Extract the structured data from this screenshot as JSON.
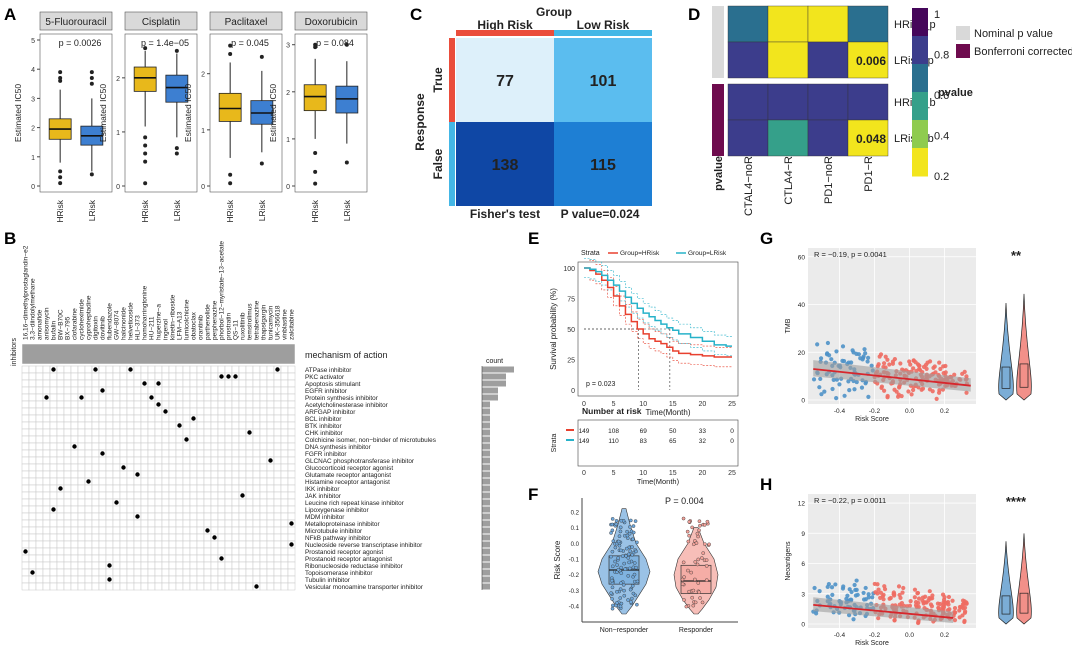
{
  "panel_labels": [
    "A",
    "B",
    "C",
    "D",
    "E",
    "F",
    "G",
    "H"
  ],
  "chart_data": [
    {
      "id": "A",
      "type": "box",
      "ylabel": "Estimated IC50",
      "categories": [
        "HRisk",
        "LRisk"
      ],
      "colors": {
        "high": "#E8B81B",
        "low": "#3D7FD1"
      },
      "subplots": [
        {
          "title": "5-Fluorouracil",
          "p": "p = 0.0026",
          "ylim": [
            0,
            5
          ],
          "ticks": [
            0,
            1,
            2,
            3,
            4,
            5
          ],
          "boxes": [
            {
              "min": 0.8,
              "q1": 1.6,
              "med": 1.95,
              "q3": 2.3,
              "max": 3.3,
              "out": [
                3.6,
                3.9,
                3.7,
                0.1,
                0.3,
                0.5
              ]
            },
            {
              "min": 0.5,
              "q1": 1.4,
              "med": 1.72,
              "q3": 2.05,
              "max": 3.0,
              "out": [
                3.5,
                3.9,
                3.7,
                0.4
              ]
            }
          ]
        },
        {
          "title": "Cisplatin",
          "p": "p = 1.4e−05",
          "ylim": [
            0,
            2.7
          ],
          "ticks": [
            0,
            1,
            2
          ],
          "boxes": [
            {
              "min": 1.1,
              "q1": 1.75,
              "med": 2.0,
              "q3": 2.2,
              "max": 2.5,
              "out": [
                0.9,
                0.75,
                0.6,
                0.45,
                0.05,
                2.55
              ]
            },
            {
              "min": 0.9,
              "q1": 1.55,
              "med": 1.82,
              "q3": 2.05,
              "max": 2.45,
              "out": [
                0.7,
                0.6,
                2.5
              ]
            }
          ]
        },
        {
          "title": "Paclitaxel",
          "p": "p = 0.045",
          "ylim": [
            0,
            2.6
          ],
          "ticks": [
            0,
            1,
            2
          ],
          "boxes": [
            {
              "min": 0.5,
              "q1": 1.15,
              "med": 1.38,
              "q3": 1.65,
              "max": 2.2,
              "out": [
                2.5,
                2.35,
                0.2,
                0.05
              ]
            },
            {
              "min": 0.6,
              "q1": 1.1,
              "med": 1.3,
              "q3": 1.52,
              "max": 2.05,
              "out": [
                2.3,
                0.4
              ]
            }
          ]
        },
        {
          "title": "Doxorubicin",
          "p": "p = 0.084",
          "ylim": [
            0,
            3.1
          ],
          "ticks": [
            0,
            1,
            2,
            3
          ],
          "boxes": [
            {
              "min": 1.0,
              "q1": 1.6,
              "med": 1.9,
              "q3": 2.15,
              "max": 2.7,
              "out": [
                2.95,
                3.0,
                0.7,
                0.3,
                0.05
              ]
            },
            {
              "min": 0.9,
              "q1": 1.55,
              "med": 1.85,
              "q3": 2.12,
              "max": 2.65,
              "out": [
                3.0,
                0.5
              ]
            }
          ]
        }
      ]
    },
    {
      "id": "B",
      "type": "dot_matrix",
      "row_axis_title": "inhibitors",
      "legend_mechanism": "mechanism of action",
      "count_title": "count",
      "drugs": [
        "16,16−dimethylprostaglandin−e2",
        "3,3−diindolylmethane",
        "amonafide",
        "anisomycin",
        "bufalin",
        "BW−B70C",
        "BX−795",
        "clofarabine",
        "cycloheximide",
        "cyproheptadine",
        "digitoxin",
        "dovitinib",
        "flubendazole",
        "GW−8074",
        "halcinonide",
        "helveticoside",
        "HLI−373",
        "homoharringtonine",
        "HU−211",
        "huperzine−a",
        "ingenol",
        "kinetin−riboside",
        "LFM−A13",
        "lumicolchicine",
        "obatoclax",
        "orantinib",
        "parthenolide",
        "perphenazine",
        "phorbol−12−myristate−13−acetate",
        "prostratin",
        "QS−11",
        "ruxolitinib",
        "temsirolimus",
        "tetrabenazine",
        "thapsigargin",
        "tunicamycin",
        "UK−356618",
        "vinblastine",
        "zalcitabine"
      ],
      "mechanisms": [
        "ATPase inhibitor",
        "PKC activator",
        "Apoptosis stimulant",
        "EGFR inhibitor",
        "Protein synthesis inhibitor",
        "Acetylcholinesterase inhibitor",
        "ARFGAP inhibitor",
        "BCL inhibitor",
        "BTK inhibitor",
        "CHK inhibitor",
        "Colchicine isomer, non−binder of microtubules",
        "DNA synthesis inhibitor",
        "FGFR inhibitor",
        "GLCNAC phosphotransferase inhibitor",
        "Glucocorticoid receptor agonist",
        "Glutamate receptor antagonist",
        "Histamine receptor antagonist",
        "IKK inhibitor",
        "JAK inhibitor",
        "Leucine rich repeat kinase inhibitor",
        "Lipoxygenase inhibitor",
        "MDM inhibitor",
        "Metalloproteinase inhibitor",
        "Microtubule inhibitor",
        "NFkB pathway inhibitor",
        "Nucleoside reverse transcriptase inhibitor",
        "Prostanoid receptor agonist",
        "Prostanoid receptor antagonist",
        "Ribonucleoside reductase inhibitor",
        "Topoisomerase inhibitor",
        "Tubulin inhibitor",
        "Vesicular monoamine transporter inhibitor"
      ],
      "counts": [
        4,
        3,
        3,
        2,
        2,
        1,
        1,
        1,
        1,
        1,
        1,
        1,
        1,
        1,
        1,
        1,
        1,
        1,
        1,
        1,
        1,
        1,
        1,
        1,
        1,
        1,
        1,
        1,
        1,
        1,
        1,
        1
      ],
      "dots": [
        [
          0,
          4
        ],
        [
          0,
          10
        ],
        [
          0,
          15
        ],
        [
          0,
          36
        ],
        [
          1,
          28
        ],
        [
          1,
          29
        ],
        [
          1,
          30
        ],
        [
          2,
          17
        ],
        [
          2,
          19
        ],
        [
          3,
          11
        ],
        [
          4,
          3
        ],
        [
          4,
          8
        ],
        [
          4,
          18
        ],
        [
          5,
          19
        ],
        [
          6,
          20
        ],
        [
          7,
          24
        ],
        [
          8,
          22
        ],
        [
          9,
          32
        ],
        [
          10,
          23
        ],
        [
          11,
          7
        ],
        [
          12,
          11
        ],
        [
          13,
          35
        ],
        [
          14,
          14
        ],
        [
          15,
          16
        ],
        [
          16,
          9
        ],
        [
          17,
          5
        ],
        [
          18,
          31
        ],
        [
          19,
          13
        ],
        [
          20,
          4
        ],
        [
          21,
          16
        ],
        [
          22,
          38
        ],
        [
          23,
          26
        ],
        [
          24,
          27
        ],
        [
          25,
          38
        ],
        [
          26,
          0
        ],
        [
          27,
          28
        ],
        [
          28,
          12
        ],
        [
          29,
          1
        ],
        [
          30,
          12
        ],
        [
          31,
          33
        ]
      ]
    },
    {
      "id": "C",
      "type": "heatmap_table",
      "group_title": "Group",
      "col_labels": [
        "High Risk",
        "Low Risk"
      ],
      "row_title": "Response",
      "row_labels": [
        "True",
        "False"
      ],
      "values": [
        [
          77,
          101
        ],
        [
          138,
          115
        ]
      ],
      "colors": [
        [
          "#DDF0FA",
          "#5BBDEF"
        ],
        [
          "#0F47A5",
          "#1E7FD4"
        ]
      ],
      "col_bar_colors": [
        "#EA4D3B",
        "#44B7E6"
      ],
      "row_bar_colors": [
        "#EA4D3B",
        "#44B7E6"
      ],
      "footer_left": "Fisher's test",
      "footer_right": "P value=0.024"
    },
    {
      "id": "D",
      "type": "heatmap",
      "rows": [
        "HRisk_p",
        "LRisk_p",
        "HRisk_b",
        "LRisk_b"
      ],
      "cols": [
        "CTAL4−noR",
        "CTLA4−R",
        "PD1−noR",
        "PD1−R"
      ],
      "values": [
        [
          0.6,
          0.15,
          0.15,
          0.7
        ],
        [
          0.9,
          0.15,
          0.9,
          0.006
        ],
        [
          0.99,
          0.99,
          0.99,
          0.99
        ],
        [
          0.99,
          0.5,
          0.99,
          0.048
        ]
      ],
      "cell_labels": [
        [
          "",
          "",
          "",
          ""
        ],
        [
          "",
          "",
          "",
          "0.006"
        ],
        [
          "",
          "",
          "",
          ""
        ],
        [
          "",
          "",
          "",
          "0.048"
        ]
      ],
      "row_annotation": "pvalue",
      "colorbar_title": "pvalue",
      "colorbar_ticks": [
        1,
        0.8,
        0.6,
        0.4,
        0.2
      ],
      "legend": [
        {
          "label": "Nominal p value",
          "color": "#D9D9D9"
        },
        {
          "label": "Bonferroni corrected",
          "color": "#6E0B4E"
        }
      ]
    },
    {
      "id": "E",
      "type": "km",
      "legend_title": "Strata",
      "legend": [
        "Group=HRisk",
        "Group=LRisk"
      ],
      "colors": [
        "#E8402F",
        "#27B2C9"
      ],
      "ylabel": "Survival probability (%)",
      "xlabel": "Time(Month)",
      "xlim": [
        0,
        25
      ],
      "ylim": [
        0,
        100
      ],
      "xticks": [
        0,
        5,
        10,
        15,
        20,
        25
      ],
      "yticks": [
        0,
        25,
        50,
        75,
        100
      ],
      "pval": "p = 0.023",
      "median_marks": [
        9.2,
        14.5
      ],
      "hrisk": [
        [
          0,
          100
        ],
        [
          1,
          98
        ],
        [
          2,
          95
        ],
        [
          3,
          90
        ],
        [
          4,
          84
        ],
        [
          5,
          77
        ],
        [
          6,
          69
        ],
        [
          7,
          62
        ],
        [
          8,
          56
        ],
        [
          9,
          50
        ],
        [
          10,
          46
        ],
        [
          11,
          42
        ],
        [
          12,
          40
        ],
        [
          13,
          38
        ],
        [
          14,
          35
        ],
        [
          15,
          32
        ],
        [
          16,
          30
        ],
        [
          18,
          29
        ],
        [
          20,
          28
        ],
        [
          22,
          27
        ],
        [
          25,
          27
        ]
      ],
      "lrisk": [
        [
          0,
          100
        ],
        [
          1,
          99
        ],
        [
          2,
          97
        ],
        [
          3,
          94
        ],
        [
          4,
          90
        ],
        [
          5,
          86
        ],
        [
          6,
          81
        ],
        [
          7,
          76
        ],
        [
          8,
          71
        ],
        [
          9,
          67
        ],
        [
          10,
          63
        ],
        [
          11,
          60
        ],
        [
          12,
          57
        ],
        [
          13,
          54
        ],
        [
          14,
          51
        ],
        [
          15,
          49
        ],
        [
          16,
          46
        ],
        [
          18,
          43
        ],
        [
          20,
          40
        ],
        [
          22,
          37
        ],
        [
          24,
          36
        ],
        [
          25,
          36
        ]
      ],
      "risk_title": "Number at risk",
      "risk_side": "Strata",
      "risk_rows": [
        [
          149,
          108,
          69,
          50,
          33,
          0
        ],
        [
          149,
          110,
          83,
          65,
          32,
          0
        ]
      ],
      "risk_xlabel": "Time(Month)"
    },
    {
      "id": "F",
      "type": "violin",
      "ylabel": "Risk Score",
      "p": "P = 0.004",
      "categories": [
        "Non−responder",
        "Responder"
      ],
      "colors": [
        "#6FA8DC",
        "#F3A29A"
      ],
      "yticks": [
        0.2,
        0.1,
        0.0,
        -0.1,
        -0.2,
        -0.3,
        -0.4
      ],
      "boxes": [
        {
          "q1": -0.26,
          "med": -0.17,
          "q3": -0.08
        },
        {
          "q1": -0.32,
          "med": -0.24,
          "q3": -0.14
        }
      ]
    },
    {
      "id": "G",
      "type": "scatter_regression",
      "ylabel": "TMB",
      "xlabel": "Risk Score",
      "stats": "R = −0.19, p = 0.0041",
      "xticks": [
        -0.4,
        -0.2,
        0.0,
        0.2
      ],
      "yticks": [
        0,
        20,
        40,
        60
      ],
      "colors": [
        "#4F92C8",
        "#EE6B62"
      ],
      "line": [
        [
          -0.55,
          13
        ],
        [
          0.35,
          6
        ]
      ],
      "sig": "**"
    },
    {
      "id": "H",
      "type": "scatter_regression",
      "ylabel": "Neoantigens",
      "xlabel": "Risk Score",
      "stats": "R = −0.22, p = 0.0011",
      "xticks": [
        -0.4,
        -0.2,
        0.0,
        0.2
      ],
      "yticks": [
        0,
        3,
        6,
        9,
        12
      ],
      "colors": [
        "#4F92C8",
        "#EE6B62"
      ],
      "line": [
        [
          -0.55,
          1.9
        ],
        [
          0.25,
          0.6
        ]
      ],
      "sig": "****"
    }
  ]
}
